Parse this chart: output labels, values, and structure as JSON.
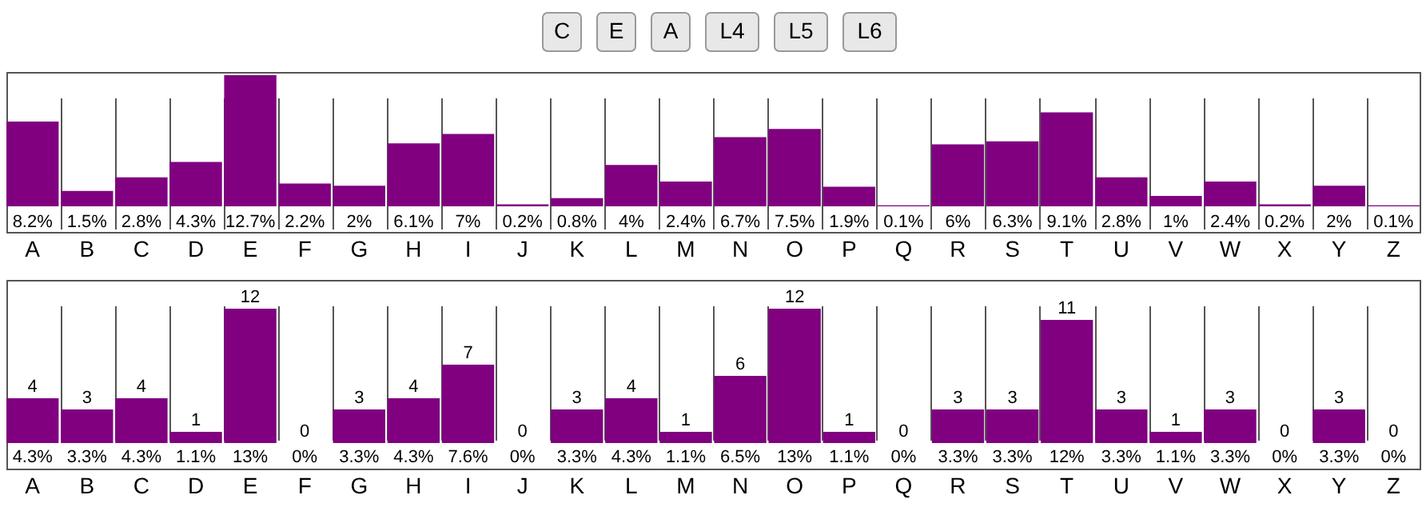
{
  "chart_data": [
    {
      "type": "other",
      "annotations": [
        "C",
        "E",
        "A",
        "L4",
        "L5",
        "L6"
      ]
    },
    {
      "type": "bar",
      "categories": [
        "A",
        "B",
        "C",
        "D",
        "E",
        "F",
        "G",
        "H",
        "I",
        "J",
        "K",
        "L",
        "M",
        "N",
        "O",
        "P",
        "Q",
        "R",
        "S",
        "T",
        "U",
        "V",
        "W",
        "X",
        "Y",
        "Z"
      ],
      "series": [
        {
          "color": "#800080",
          "values": [
            8.2,
            1.5,
            2.8,
            4.3,
            12.7,
            2.2,
            2,
            6.1,
            7,
            0.2,
            0.8,
            4,
            2.4,
            6.7,
            7.5,
            1.9,
            0.1,
            6,
            6.3,
            9.1,
            2.8,
            1,
            2.4,
            0.2,
            2,
            0.1
          ],
          "value_labels": [
            "8.2%",
            "1.5%",
            "2.8%",
            "4.3%",
            "12.7%",
            "2.2%",
            "2%",
            "6.1%",
            "7%",
            "0.2%",
            "0.8%",
            "4%",
            "2.4%",
            "6.7%",
            "7.5%",
            "1.9%",
            "0.1%",
            "6%",
            "6.3%",
            "9.1%",
            "2.8%",
            "1%",
            "2.4%",
            "0.2%",
            "2%",
            "0.1%"
          ]
        }
      ],
      "grid": "x"
    },
    {
      "type": "bar",
      "categories": [
        "A",
        "B",
        "C",
        "D",
        "E",
        "F",
        "G",
        "H",
        "I",
        "J",
        "K",
        "L",
        "M",
        "N",
        "O",
        "P",
        "Q",
        "R",
        "S",
        "T",
        "U",
        "V",
        "W",
        "X",
        "Y",
        "Z"
      ],
      "series": [
        {
          "color": "#800080",
          "values": [
            4,
            3,
            4,
            1,
            12,
            0,
            3,
            4,
            7,
            0,
            3,
            4,
            1,
            6,
            12,
            1,
            0,
            3,
            3,
            11,
            3,
            1,
            3,
            0,
            3,
            0
          ]
        }
      ],
      "data_labels": true,
      "grid": "x",
      "annotations": [
        {
          "text": "4.3%",
          "x": "A",
          "y": 0
        },
        {
          "text": "3.3%",
          "x": "B",
          "y": 0
        },
        {
          "text": "4.3%",
          "x": "C",
          "y": 0
        },
        {
          "text": "1.1%",
          "x": "D",
          "y": 0
        },
        {
          "text": "13%",
          "x": "E",
          "y": 0
        },
        {
          "text": "0%",
          "x": "F",
          "y": 0
        },
        {
          "text": "3.3%",
          "x": "G",
          "y": 0
        },
        {
          "text": "4.3%",
          "x": "H",
          "y": 0
        },
        {
          "text": "7.6%",
          "x": "I",
          "y": 0
        },
        {
          "text": "0%",
          "x": "J",
          "y": 0
        },
        {
          "text": "3.3%",
          "x": "K",
          "y": 0
        },
        {
          "text": "4.3%",
          "x": "L",
          "y": 0
        },
        {
          "text": "1.1%",
          "x": "M",
          "y": 0
        },
        {
          "text": "6.5%",
          "x": "N",
          "y": 0
        },
        {
          "text": "13%",
          "x": "O",
          "y": 0
        },
        {
          "text": "1.1%",
          "x": "P",
          "y": 0
        },
        {
          "text": "0%",
          "x": "Q",
          "y": 0
        },
        {
          "text": "3.3%",
          "x": "R",
          "y": 0
        },
        {
          "text": "3.3%",
          "x": "S",
          "y": 0
        },
        {
          "text": "12%",
          "x": "T",
          "y": 0
        },
        {
          "text": "3.3%",
          "x": "U",
          "y": 0
        },
        {
          "text": "1.1%",
          "x": "V",
          "y": 0
        },
        {
          "text": "3.3%",
          "x": "W",
          "y": 0
        },
        {
          "text": "0%",
          "x": "X",
          "y": 0
        },
        {
          "text": "3.3%",
          "x": "Y",
          "y": 0
        },
        {
          "text": "0%",
          "x": "Z",
          "y": 0
        }
      ]
    }
  ]
}
